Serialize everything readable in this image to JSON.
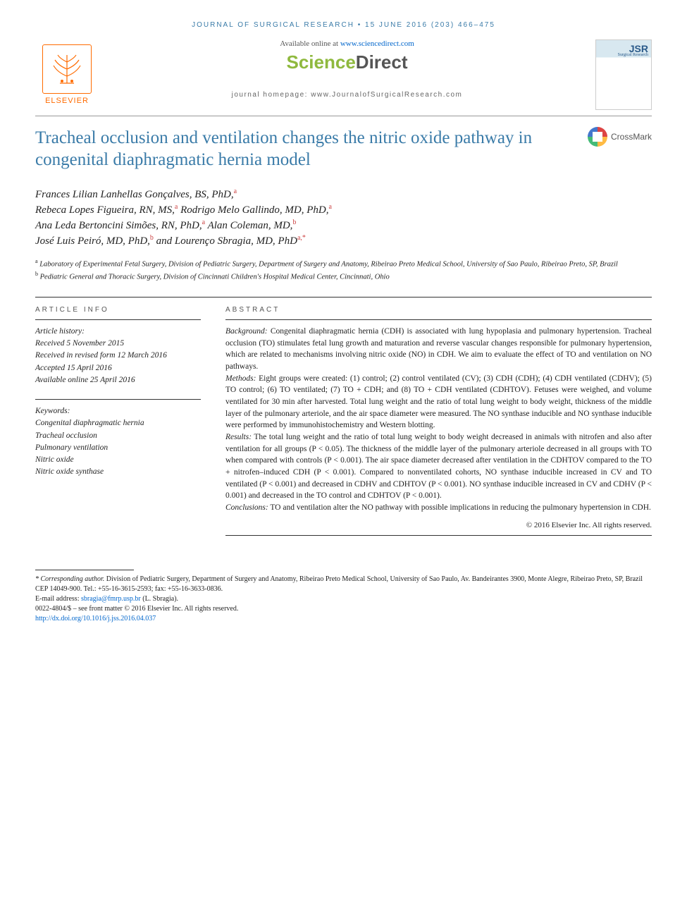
{
  "running_header": "JOURNAL OF SURGICAL RESEARCH • 15 JUNE 2016 (203) 466–475",
  "header": {
    "elsevier": "ELSEVIER",
    "available_text": "Available online at ",
    "available_url": "www.sciencedirect.com",
    "sd_science": "Science",
    "sd_direct": "Direct",
    "homepage_label": "journal homepage: ",
    "homepage_url": "www.JournalofSurgicalResearch.com",
    "jsr_label": "JSR",
    "jsr_sub": "Surgical Research",
    "crossmark": "CrossMark"
  },
  "title": "Tracheal occlusion and ventilation changes the nitric oxide pathway in congenital diaphragmatic hernia model",
  "authors_html": [
    {
      "name": "Frances Lilian Lanhellas Gonçalves, BS, PhD,",
      "aff": "a"
    },
    {
      "name": "Rebeca Lopes Figueira, RN, MS,",
      "aff": "a"
    },
    {
      "name": "Rodrigo Melo Gallindo, MD, PhD,",
      "aff": "a"
    },
    {
      "name": "Ana Leda Bertoncini Simões, RN, PhD,",
      "aff": "a"
    },
    {
      "name": "Alan Coleman, MD,",
      "aff": "b"
    },
    {
      "name": "José Luis Peiró, MD, PhD,",
      "aff": "b"
    },
    {
      "name": "and Lourenço Sbragia, MD, PhD",
      "aff": "a,*"
    }
  ],
  "affiliations": {
    "a": "Laboratory of Experimental Fetal Surgery, Division of Pediatric Surgery, Department of Surgery and Anatomy, Ribeirao Preto Medical School, University of Sao Paulo, Ribeirao Preto, SP, Brazil",
    "b": "Pediatric General and Thoracic Surgery, Division of Cincinnati Children's Hospital Medical Center, Cincinnati, Ohio"
  },
  "article_info": {
    "header": "ARTICLE INFO",
    "history_label": "Article history:",
    "received": "Received 5 November 2015",
    "revised": "Received in revised form 12 March 2016",
    "accepted": "Accepted 15 April 2016",
    "online": "Available online 25 April 2016",
    "keywords_label": "Keywords:",
    "keywords": [
      "Congenital diaphragmatic hernia",
      "Tracheal occlusion",
      "Pulmonary ventilation",
      "Nitric oxide",
      "Nitric oxide synthase"
    ]
  },
  "abstract": {
    "header": "ABSTRACT",
    "background_label": "Background:",
    "background": " Congenital diaphragmatic hernia (CDH) is associated with lung hypoplasia and pulmonary hypertension. Tracheal occlusion (TO) stimulates fetal lung growth and maturation and reverse vascular changes responsible for pulmonary hypertension, which are related to mechanisms involving nitric oxide (NO) in CDH. We aim to evaluate the effect of TO and ventilation on NO pathways.",
    "methods_label": "Methods:",
    "methods": " Eight groups were created: (1) control; (2) control ventilated (CV); (3) CDH (CDH); (4) CDH ventilated (CDHV); (5) TO control; (6) TO ventilated; (7) TO + CDH; and (8) TO + CDH ventilated (CDHTOV). Fetuses were weighed, and volume ventilated for 30 min after harvested. Total lung weight and the ratio of total lung weight to body weight, thickness of the middle layer of the pulmonary arteriole, and the air space diameter were measured. The NO synthase inducible and NO synthase inducible were performed by immunohistochemistry and Western blotting.",
    "results_label": "Results:",
    "results": " The total lung weight and the ratio of total lung weight to body weight decreased in animals with nitrofen and also after ventilation for all groups (P < 0.05). The thickness of the middle layer of the pulmonary arteriole decreased in all groups with TO when compared with controls (P < 0.001). The air space diameter decreased after ventilation in the CDHTOV compared to the TO + nitrofen–induced CDH (P < 0.001). Compared to nonventilated cohorts, NO synthase inducible increased in CV and TO ventilated (P < 0.001) and decreased in CDHV and CDHTOV (P < 0.001). NO synthase inducible increased in CV and CDHV (P < 0.001) and decreased in the TO control and CDHTOV (P < 0.001).",
    "conclusions_label": "Conclusions:",
    "conclusions": " TO and ventilation alter the NO pathway with possible implications in reducing the pulmonary hypertension in CDH.",
    "copyright": "© 2016 Elsevier Inc. All rights reserved."
  },
  "footnotes": {
    "corresponding_label": "* Corresponding author.",
    "corresponding": " Division of Pediatric Surgery, Department of Surgery and Anatomy, Ribeirao Preto Medical School, University of Sao Paulo, Av. Bandeirantes 3900, Monte Alegre, Ribeirao Preto, SP, Brazil CEP 14049-900. Tel.: +55-16-3615-2593; fax: +55-16-3633-0836.",
    "email_label": "E-mail address: ",
    "email": "sbragia@fmrp.usp.br",
    "email_who": " (L. Sbragia).",
    "issn": "0022-4804/$ – see front matter © 2016 Elsevier Inc. All rights reserved.",
    "doi": "http://dx.doi.org/10.1016/j.jss.2016.04.037"
  },
  "colors": {
    "header_blue": "#3a7ba8",
    "elsevier_orange": "#ff6b00",
    "link_blue": "#0066cc",
    "sd_green": "#8fb93e",
    "text": "#222222"
  }
}
